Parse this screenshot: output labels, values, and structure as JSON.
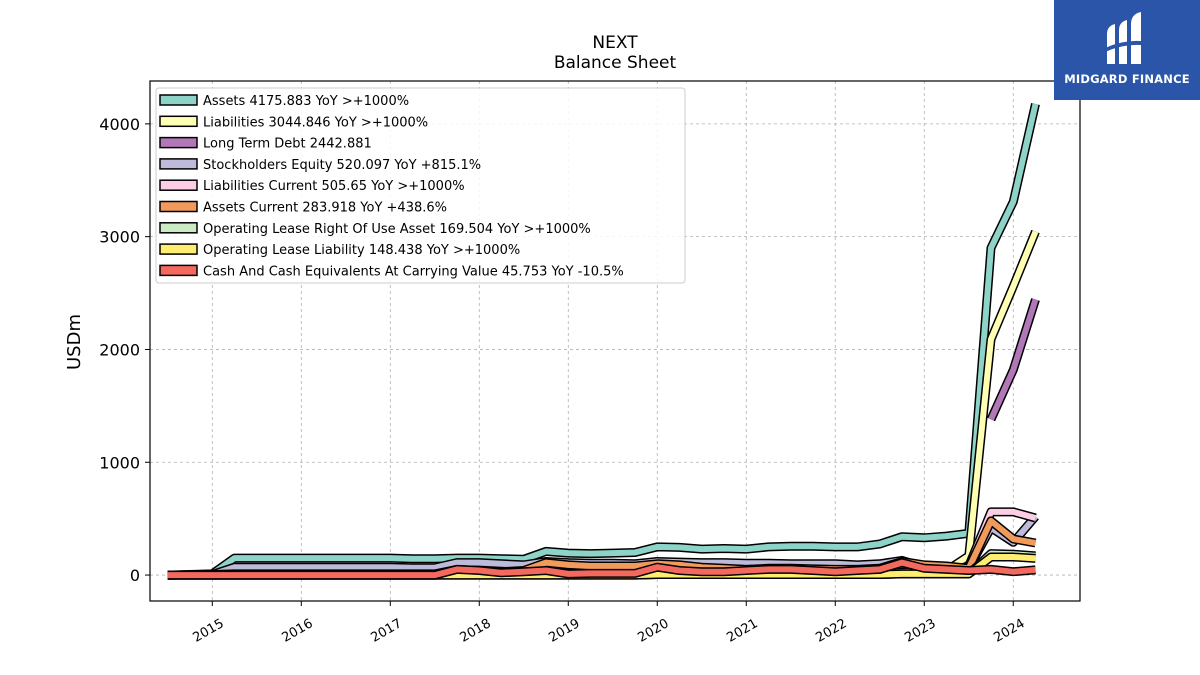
{
  "brand": {
    "name": "MIDGARD FINANCE"
  },
  "chart_data": {
    "type": "line",
    "title": "NEXT",
    "subtitle": "Balance  Sheet",
    "ylabel": "USDm",
    "xlabel": "",
    "xlim": [
      2014.3,
      2024.75
    ],
    "ylim": [
      -230,
      4380
    ],
    "yticks": [
      0,
      1000,
      2000,
      3000,
      4000
    ],
    "xticks": [
      2015,
      2016,
      2017,
      2018,
      2019,
      2020,
      2021,
      2022,
      2023,
      2024
    ],
    "grid": true,
    "legend_position": "top-left",
    "series": [
      {
        "name": "Assets  4175.883 YoY >+1000%",
        "color": "#8dd3c7",
        "x": [
          2014.5,
          2015.0,
          2015.25,
          2016.0,
          2016.5,
          2017.0,
          2017.25,
          2017.5,
          2017.75,
          2018.0,
          2018.25,
          2018.5,
          2018.75,
          2019.0,
          2019.25,
          2019.5,
          2019.75,
          2020.0,
          2020.25,
          2020.5,
          2020.75,
          2021.0,
          2021.25,
          2021.5,
          2021.75,
          2022.0,
          2022.25,
          2022.5,
          2022.75,
          2023.0,
          2023.25,
          2023.5,
          2023.75,
          2024.0,
          2024.25
        ],
        "y": [
          0,
          10,
          150,
          150,
          150,
          150,
          145,
          145,
          150,
          150,
          145,
          140,
          210,
          195,
          190,
          195,
          200,
          250,
          245,
          230,
          235,
          230,
          250,
          255,
          255,
          250,
          250,
          275,
          340,
          330,
          345,
          370,
          2900,
          3310,
          4176
        ]
      },
      {
        "name": "Liabilities  3044.846 YoY >+1000%",
        "color": "#ffffb3",
        "x": [
          2014.5,
          2015.0,
          2015.25,
          2016.0,
          2016.5,
          2017.0,
          2017.25,
          2017.5,
          2017.75,
          2018.0,
          2018.25,
          2018.5,
          2018.75,
          2019.0,
          2019.25,
          2019.5,
          2019.75,
          2020.0,
          2020.25,
          2020.5,
          2020.75,
          2021.0,
          2021.25,
          2021.5,
          2021.75,
          2022.0,
          2022.25,
          2022.5,
          2022.75,
          2023.0,
          2023.25,
          2023.5,
          2023.75,
          2024.0,
          2024.25
        ],
        "y": [
          0,
          0,
          0,
          0,
          0,
          0,
          0,
          0,
          5,
          5,
          5,
          10,
          20,
          15,
          15,
          15,
          10,
          30,
          30,
          20,
          20,
          25,
          25,
          20,
          20,
          20,
          20,
          20,
          25,
          30,
          40,
          170,
          2090,
          2560,
          3045
        ]
      },
      {
        "name": "Long Term Debt  2442.881",
        "color": "#bebada",
        "line_color": "#b277b7",
        "x": [
          2023.75,
          2024.0,
          2024.25
        ],
        "y": [
          1380,
          1820,
          2443
        ]
      },
      {
        "name": "Stockholders Equity  520.097 YoY +815.1%",
        "color": "#bebada",
        "x": [
          2014.5,
          2015.0,
          2015.25,
          2016.0,
          2016.5,
          2017.0,
          2017.25,
          2017.5,
          2017.75,
          2018.0,
          2018.25,
          2018.5,
          2018.75,
          2019.0,
          2019.25,
          2019.5,
          2019.75,
          2020.0,
          2020.25,
          2020.5,
          2020.75,
          2021.0,
          2021.25,
          2021.5,
          2021.75,
          2022.0,
          2022.25,
          2022.5,
          2022.75,
          2023.0,
          2023.25,
          2023.5,
          2023.75,
          2024.0,
          2024.25
        ],
        "y": [
          0,
          5,
          70,
          70,
          70,
          70,
          65,
          65,
          110,
          110,
          100,
          90,
          120,
          110,
          105,
          105,
          100,
          120,
          115,
          110,
          110,
          105,
          105,
          100,
          100,
          100,
          90,
          100,
          130,
          70,
          60,
          60,
          420,
          290,
          520
        ]
      },
      {
        "name": "Liabilities Current  505.65 YoY >+1000%",
        "color": "#fccde5",
        "x": [
          2014.5,
          2015.0,
          2015.25,
          2016.0,
          2016.5,
          2017.0,
          2017.25,
          2017.5,
          2017.75,
          2018.0,
          2018.25,
          2018.5,
          2018.75,
          2019.0,
          2019.25,
          2019.5,
          2019.75,
          2020.0,
          2020.25,
          2020.5,
          2020.75,
          2021.0,
          2021.25,
          2021.5,
          2021.75,
          2022.0,
          2022.25,
          2022.5,
          2022.75,
          2023.0,
          2023.25,
          2023.5,
          2023.75,
          2024.0,
          2024.25
        ],
        "y": [
          0,
          0,
          0,
          0,
          0,
          0,
          0,
          0,
          5,
          5,
          5,
          10,
          15,
          15,
          15,
          15,
          10,
          25,
          25,
          20,
          20,
          20,
          20,
          20,
          20,
          20,
          20,
          20,
          25,
          30,
          30,
          80,
          560,
          560,
          506
        ]
      },
      {
        "name": "Assets Current  283.918 YoY +438.6%",
        "color": "#fdb462",
        "line_color": "#f29a5c",
        "x": [
          2014.5,
          2015.0,
          2015.25,
          2016.0,
          2016.5,
          2017.0,
          2017.25,
          2017.5,
          2017.75,
          2018.0,
          2018.25,
          2018.5,
          2018.75,
          2019.0,
          2019.25,
          2019.5,
          2019.75,
          2020.0,
          2020.25,
          2020.5,
          2020.75,
          2021.0,
          2021.25,
          2021.5,
          2021.75,
          2022.0,
          2022.25,
          2022.5,
          2022.75,
          2023.0,
          2023.25,
          2023.5,
          2023.75,
          2024.0,
          2024.25
        ],
        "y": [
          0,
          5,
          10,
          10,
          10,
          10,
          10,
          10,
          50,
          40,
          30,
          40,
          110,
          90,
          80,
          80,
          80,
          100,
          90,
          70,
          60,
          50,
          60,
          60,
          55,
          50,
          50,
          60,
          120,
          90,
          80,
          60,
          480,
          320,
          284
        ]
      },
      {
        "name": "Operating Lease Right Of Use Asset  169.504 YoY >+1000%",
        "color": "#ccebc5",
        "x": [
          2014.5,
          2015.0,
          2016.0,
          2017.0,
          2018.0,
          2019.0,
          2019.25,
          2019.5,
          2019.75,
          2020.0,
          2020.25,
          2020.5,
          2020.75,
          2021.0,
          2021.25,
          2021.5,
          2021.75,
          2022.0,
          2022.25,
          2022.5,
          2022.75,
          2023.0,
          2023.25,
          2023.5,
          2023.75,
          2024.0,
          2024.25
        ],
        "y": [
          0,
          0,
          0,
          0,
          0,
          0,
          0,
          0,
          0,
          5,
          5,
          5,
          5,
          5,
          5,
          5,
          5,
          5,
          5,
          5,
          10,
          10,
          10,
          10,
          190,
          185,
          170
        ]
      },
      {
        "name": "Operating Lease Liability  148.438 YoY >+1000%",
        "color": "#ffed6f",
        "x": [
          2014.5,
          2015.0,
          2016.0,
          2017.0,
          2018.0,
          2019.0,
          2019.25,
          2019.5,
          2019.75,
          2020.0,
          2020.25,
          2020.5,
          2020.75,
          2021.0,
          2021.25,
          2021.5,
          2021.75,
          2022.0,
          2022.25,
          2022.5,
          2022.75,
          2023.0,
          2023.25,
          2023.5,
          2023.75,
          2024.0,
          2024.25
        ],
        "y": [
          0,
          0,
          0,
          0,
          0,
          0,
          0,
          0,
          0,
          5,
          5,
          5,
          5,
          5,
          5,
          5,
          5,
          5,
          5,
          5,
          10,
          10,
          10,
          10,
          160,
          160,
          148
        ]
      },
      {
        "name": "Cash And Cash Equivalents At Carrying Value  45.753 YoY -10.5%",
        "color": "#fb8072",
        "line_color": "#f4695e",
        "x": [
          2014.5,
          2015.0,
          2015.25,
          2016.0,
          2016.5,
          2017.0,
          2017.25,
          2017.5,
          2017.75,
          2018.0,
          2018.25,
          2018.5,
          2018.75,
          2019.0,
          2019.25,
          2019.5,
          2019.75,
          2020.0,
          2020.25,
          2020.5,
          2020.75,
          2021.0,
          2021.25,
          2021.5,
          2021.75,
          2022.0,
          2022.25,
          2022.5,
          2022.75,
          2023.0,
          2023.25,
          2023.5,
          2023.75,
          2024.0,
          2024.25
        ],
        "y": [
          0,
          0,
          0,
          0,
          0,
          0,
          0,
          0,
          50,
          40,
          20,
          30,
          40,
          10,
          15,
          15,
          15,
          70,
          40,
          30,
          30,
          40,
          50,
          50,
          40,
          30,
          40,
          50,
          110,
          60,
          50,
          40,
          50,
          30,
          46
        ]
      }
    ]
  }
}
